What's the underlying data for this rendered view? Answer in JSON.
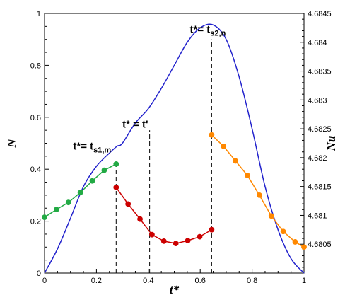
{
  "chart_data": {
    "type": "line",
    "xlabel": "t*",
    "ylabel_left": "N",
    "ylabel_right": "Nu",
    "xlim": [
      0,
      1
    ],
    "ylim_left": [
      0,
      1
    ],
    "ylim_right": [
      4.68,
      4.6845
    ],
    "x_ticks": [
      "0",
      "0.2",
      "0.4",
      "0.6",
      "0.8",
      "1"
    ],
    "y_left_ticks": [
      "0",
      "0.2",
      "0.4",
      "0.6",
      "0.8",
      "1"
    ],
    "y_right_ticks": [
      "4.6805",
      "4.681",
      "4.6815",
      "4.682",
      "4.6825",
      "4.683",
      "4.6835",
      "4.684",
      "4.6845"
    ],
    "grid": false,
    "series": [
      {
        "axis": "right",
        "color": "#2222cc",
        "marker": false,
        "x": [
          0.0,
          0.05,
          0.1,
          0.15,
          0.2,
          0.25,
          0.28,
          0.3,
          0.35,
          0.4,
          0.45,
          0.5,
          0.55,
          0.6,
          0.65,
          0.7,
          0.75,
          0.8,
          0.85,
          0.9,
          0.95,
          1.0
        ],
        "y": [
          4.68,
          4.68042,
          4.68095,
          4.6815,
          4.68185,
          4.68208,
          4.6822,
          4.68225,
          4.6826,
          4.68285,
          4.6832,
          4.6836,
          4.684,
          4.68425,
          4.6843,
          4.68405,
          4.6834,
          4.6825,
          4.6815,
          4.68075,
          4.68025,
          4.68
        ]
      },
      {
        "axis": "left",
        "color": "#22aa44",
        "marker": true,
        "x": [
          0.0,
          0.046,
          0.092,
          0.138,
          0.184,
          0.23,
          0.276
        ],
        "y": [
          0.215,
          0.245,
          0.272,
          0.31,
          0.355,
          0.396,
          0.42
        ]
      },
      {
        "axis": "left",
        "color": "#cc0000",
        "marker": true,
        "x": [
          0.276,
          0.322,
          0.368,
          0.414,
          0.46,
          0.506,
          0.552,
          0.598,
          0.644
        ],
        "y": [
          0.33,
          0.266,
          0.208,
          0.148,
          0.123,
          0.114,
          0.125,
          0.14,
          0.167
        ]
      },
      {
        "axis": "left",
        "color": "#ff8800",
        "marker": true,
        "x": [
          0.644,
          0.69,
          0.736,
          0.782,
          0.828,
          0.874,
          0.92,
          0.966,
          1.0
        ],
        "y": [
          0.532,
          0.488,
          0.432,
          0.376,
          0.3,
          0.22,
          0.16,
          0.12,
          0.1
        ]
      }
    ],
    "vlines": [
      {
        "x": 0.276,
        "y_top": 0.42
      },
      {
        "x": 0.405,
        "y_top": 0.55
      },
      {
        "x": 0.644,
        "y_top": 0.9
      }
    ],
    "annotations": [
      {
        "main": "t*= t",
        "sub": "s1,m",
        "x": 0.11,
        "y": 0.475
      },
      {
        "main": "t* = t",
        "sub": "",
        "x": 0.3,
        "y": 0.56,
        "prime": "'"
      },
      {
        "main": "t*= t",
        "sub": "s2,n",
        "x": 0.56,
        "y": 0.925
      }
    ]
  }
}
